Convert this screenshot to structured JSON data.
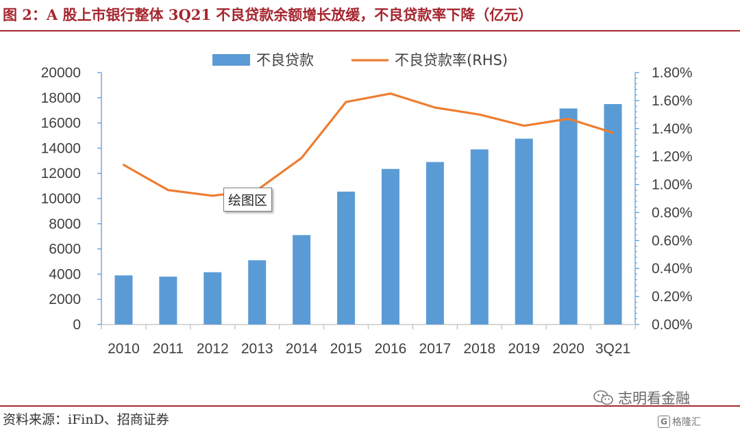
{
  "figure": {
    "title": "图 2：A 股上市银行整体 3Q21 不良贷款余额增长放缓，不良贷款率下降（亿元）",
    "source": "资料来源：iFinD、招商证券",
    "watermark": "志明看金融",
    "watermark_badge": "格隆汇",
    "tooltip": "绘图区"
  },
  "colors": {
    "title_red": "#a6262f",
    "bar_blue": "#5b9bd5",
    "line_orange": "#ed7d31",
    "axis_blue": "#5b9bd5"
  },
  "chart_data": {
    "type": "bar",
    "title": "",
    "categories": [
      "2010",
      "2011",
      "2012",
      "2013",
      "2014",
      "2015",
      "2016",
      "2017",
      "2018",
      "2019",
      "2020",
      "3Q21"
    ],
    "series": [
      {
        "name": "不良贷款",
        "type": "bar",
        "axis": "left",
        "values": [
          3900,
          3800,
          4150,
          5100,
          7100,
          10550,
          12350,
          12900,
          13900,
          14750,
          17150,
          17500
        ]
      },
      {
        "name": "不良贷款率(RHS)",
        "type": "line",
        "axis": "right",
        "values": [
          1.14,
          0.96,
          0.92,
          0.96,
          1.19,
          1.59,
          1.65,
          1.55,
          1.5,
          1.42,
          1.47,
          1.37
        ]
      }
    ],
    "left_axis": {
      "min": 0,
      "max": 20000,
      "step": 2000,
      "tick_labels": [
        "0",
        "2000",
        "4000",
        "6000",
        "8000",
        "10000",
        "12000",
        "14000",
        "16000",
        "18000",
        "20000"
      ]
    },
    "right_axis": {
      "min": 0,
      "max": 1.8,
      "step": 0.2,
      "tick_labels": [
        "0.00%",
        "0.20%",
        "0.40%",
        "0.60%",
        "0.80%",
        "1.00%",
        "1.20%",
        "1.40%",
        "1.60%",
        "1.80%"
      ]
    },
    "legend_position": "top",
    "grid": false
  }
}
